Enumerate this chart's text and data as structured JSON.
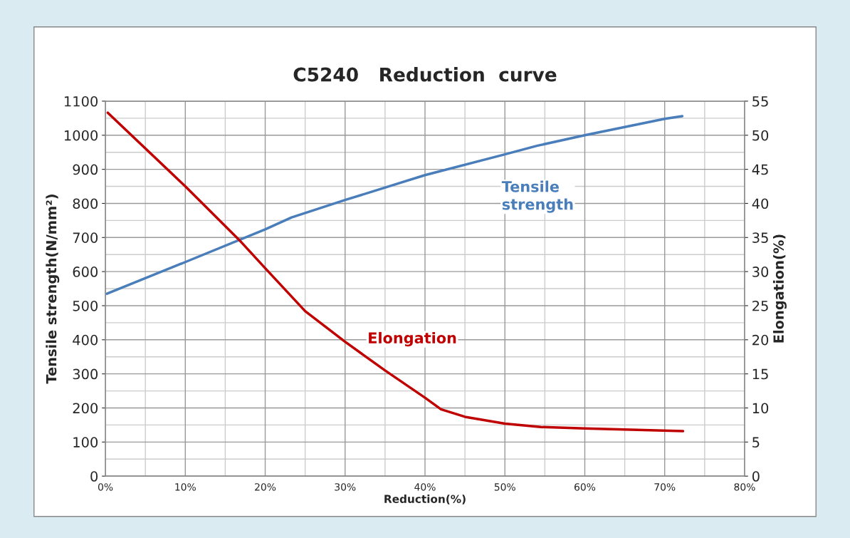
{
  "chart_data": {
    "type": "line",
    "title": "C5240   Reduction  curve",
    "xlabel": "Reduction(%)",
    "ylabel": "Tensile strength(N/mm²)",
    "y2label": "Elongation(%)",
    "xlim": [
      0,
      80
    ],
    "xticks": [
      {
        "value": 0,
        "label": "0%"
      },
      {
        "value": 10,
        "label": "10%"
      },
      {
        "value": 20,
        "label": "20%"
      },
      {
        "value": 30,
        "label": "30%"
      },
      {
        "value": 40,
        "label": "40%"
      },
      {
        "value": 50,
        "label": "50%"
      },
      {
        "value": 60,
        "label": "60%"
      },
      {
        "value": 70,
        "label": "70%"
      },
      {
        "value": 80,
        "label": "80%"
      }
    ],
    "ylim": [
      0,
      1100
    ],
    "yticks": [
      0,
      100,
      200,
      300,
      400,
      500,
      600,
      700,
      800,
      900,
      1000,
      1100
    ],
    "y2lim": [
      0,
      55
    ],
    "y2ticks": [
      0,
      5,
      10,
      15,
      20,
      25,
      30,
      35,
      40,
      45,
      50,
      55
    ],
    "grid": true,
    "legend": false,
    "marker": "none",
    "line_style": "solid",
    "series": [
      {
        "name": "Tensile strength",
        "color": "#4a7ebb",
        "x": [
          0.2,
          10,
          20,
          23.3,
          30,
          40,
          50,
          54,
          60,
          70,
          72.2
        ],
        "values": [
          535,
          628,
          724,
          759,
          810,
          883,
          944,
          969,
          1000,
          1048,
          1056
        ]
      },
      {
        "name": "Elongation",
        "color": "#c00000",
        "axis": "y2",
        "x": [
          0.3,
          10,
          16.7,
          20,
          25,
          30,
          35,
          40,
          42,
          45,
          50,
          54.5,
          60,
          72.3
        ],
        "values": [
          53.3,
          42.5,
          34.7,
          30.5,
          24.2,
          19.7,
          15.5,
          11.5,
          9.8,
          8.7,
          7.7,
          7.2,
          7.0,
          6.6
        ]
      }
    ]
  }
}
